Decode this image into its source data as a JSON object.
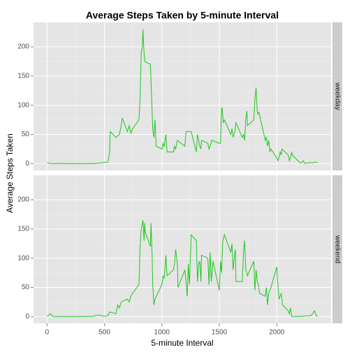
{
  "chart_data": {
    "type": "line",
    "title": "Average Steps Taken by 5-minute Interval",
    "xlabel": "5-minute Interval",
    "ylabel": "Average Steps Taken",
    "color": "#1dc71d",
    "grid": true,
    "xlim": [
      -117.75,
      2472.75
    ],
    "xticks": [
      0,
      500,
      1000,
      1500,
      2000
    ],
    "ylim": [
      -11.5,
      241.9
    ],
    "yticks": [
      0,
      50,
      100,
      150,
      200
    ],
    "facets": [
      {
        "label": "weekday",
        "x": [
          0,
          25,
          50,
          100,
          200,
          300,
          400,
          500,
          530,
          545,
          550,
          600,
          630,
          650,
          655,
          700,
          715,
          730,
          745,
          800,
          810,
          820,
          830,
          835,
          840,
          845,
          850,
          900,
          910,
          920,
          930,
          940,
          950,
          1000,
          1010,
          1020,
          1035,
          1045,
          1100,
          1110,
          1120,
          1135,
          1200,
          1210,
          1215,
          1255,
          1300,
          1310,
          1320,
          1330,
          1340,
          1345,
          1400,
          1410,
          1420,
          1435,
          1500,
          1510,
          1520,
          1525,
          1535,
          1545,
          1600,
          1610,
          1620,
          1635,
          1645,
          1700,
          1710,
          1720,
          1730,
          1740,
          1745,
          1800,
          1810,
          1820,
          1830,
          1835,
          1845,
          1900,
          1910,
          1920,
          1930,
          1940,
          1950,
          2000,
          2010,
          2020,
          2030,
          2040,
          2045,
          2100,
          2110,
          2120,
          2130,
          2135,
          2200,
          2210,
          2230,
          2245,
          2300,
          2315,
          2330,
          2355
        ],
        "values": [
          2,
          0.5,
          0.2,
          0.4,
          0.1,
          0.2,
          0.1,
          2,
          3,
          20,
          55,
          45,
          50,
          70,
          78,
          55,
          65,
          52,
          60,
          75,
          110,
          190,
          200,
          230,
          205,
          190,
          175,
          170,
          115,
          60,
          45,
          75,
          30,
          25,
          35,
          30,
          50,
          20,
          20,
          30,
          25,
          40,
          30,
          55,
          55,
          55,
          20,
          50,
          40,
          30,
          25,
          40,
          35,
          25,
          30,
          40,
          35,
          35,
          95,
          95,
          70,
          75,
          50,
          60,
          45,
          55,
          70,
          45,
          50,
          40,
          75,
          90,
          65,
          75,
          110,
          130,
          90,
          85,
          88,
          40,
          45,
          30,
          40,
          20,
          25,
          10,
          5,
          10,
          20,
          15,
          25,
          15,
          5,
          10,
          20,
          15,
          2,
          1,
          5,
          0.5,
          2,
          1,
          3,
          2
        ]
      },
      {
        "label": "weekend",
        "x": [
          0,
          30,
          50,
          100,
          200,
          300,
          400,
          445,
          500,
          530,
          545,
          600,
          615,
          630,
          645,
          700,
          715,
          730,
          745,
          800,
          810,
          820,
          835,
          845,
          850,
          855,
          900,
          905,
          915,
          920,
          930,
          940,
          1000,
          1010,
          1020,
          1035,
          1045,
          1100,
          1110,
          1120,
          1135,
          1140,
          1200,
          1210,
          1220,
          1230,
          1240,
          1255,
          1300,
          1310,
          1320,
          1330,
          1340,
          1345,
          1400,
          1410,
          1420,
          1430,
          1445,
          1500,
          1510,
          1520,
          1530,
          1545,
          1600,
          1610,
          1620,
          1630,
          1640,
          1645,
          1700,
          1710,
          1720,
          1730,
          1740,
          1745,
          1800,
          1810,
          1820,
          1830,
          1840,
          1850,
          1900,
          1910,
          1920,
          1930,
          1940,
          1950,
          2000,
          2005,
          2010,
          2020,
          2030,
          2040,
          2050,
          2100,
          2110,
          2120,
          2130,
          2200,
          2300,
          2330,
          2340,
          2355
        ],
        "values": [
          0.2,
          5,
          0.5,
          0.2,
          0.1,
          0.2,
          0.5,
          3,
          0.5,
          2,
          8,
          5,
          20,
          15,
          25,
          30,
          25,
          35,
          40,
          55,
          120,
          150,
          165,
          130,
          160,
          145,
          120,
          160,
          105,
          55,
          20,
          30,
          55,
          70,
          65,
          105,
          70,
          80,
          90,
          115,
          90,
          50,
          80,
          60,
          35,
          90,
          55,
          140,
          130,
          60,
          90,
          95,
          60,
          105,
          100,
          55,
          110,
          60,
          95,
          45,
          95,
          75,
          130,
          140,
          110,
          125,
          80,
          100,
          115,
          60,
          60,
          110,
          130,
          80,
          75,
          70,
          95,
          45,
          80,
          60,
          55,
          40,
          35,
          50,
          20,
          40,
          45,
          50,
          85,
          65,
          55,
          30,
          35,
          40,
          20,
          10,
          5,
          15,
          0.5,
          0.3,
          2,
          10,
          3,
          0
        ]
      }
    ]
  }
}
